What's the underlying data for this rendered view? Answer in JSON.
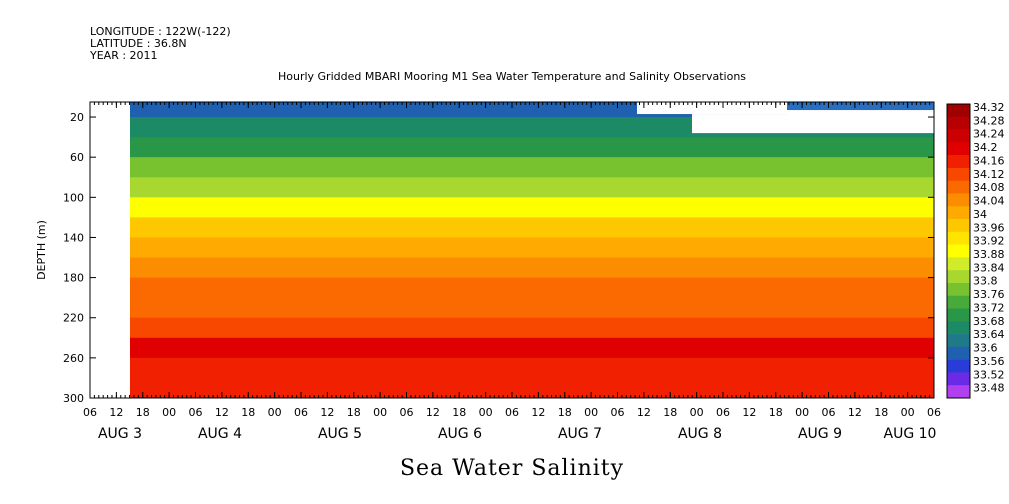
{
  "header": {
    "longitude": "LONGITUDE : 122W(-122)",
    "latitude": "LATITUDE : 36.8N",
    "year": "YEAR : 2011"
  },
  "chart_data": {
    "type": "heatmap",
    "title": "Hourly Gridded MBARI Mooring M1 Sea Water Temperature and Salinity Observations",
    "xlabel": "Sea Water Salinity",
    "ylabel": "DEPTH (m)",
    "y_ticks": [
      20,
      60,
      100,
      140,
      180,
      220,
      260,
      300
    ],
    "ylim": [
      300,
      5
    ],
    "x_hour_ticks": [
      "06",
      "12",
      "18",
      "00",
      "06",
      "12",
      "18",
      "00",
      "06",
      "12",
      "18",
      "00",
      "06",
      "12",
      "18",
      "00",
      "06",
      "12",
      "18",
      "00",
      "06",
      "12",
      "18",
      "00",
      "06",
      "12",
      "18",
      "00",
      "06",
      "12",
      "18",
      "00",
      "06"
    ],
    "x_day_labels": [
      "AUG  3",
      "AUG  4",
      "AUG  5",
      "AUG  6",
      "AUG  7",
      "AUG  8",
      "AUG  9",
      "AUG 10"
    ],
    "colorbar_levels": [
      "34.32",
      "34.28",
      "34.24",
      "34.2",
      "34.16",
      "34.12",
      "34.08",
      "34.04",
      "34",
      "33.96",
      "33.92",
      "33.88",
      "33.84",
      "33.8",
      "33.76",
      "33.72",
      "33.68",
      "33.64",
      "33.6",
      "33.56",
      "33.52",
      "33.48"
    ],
    "colorbar_colors": [
      "#a00000",
      "#b80000",
      "#cc0000",
      "#e00000",
      "#f02000",
      "#f84800",
      "#fa6a00",
      "#fc8c00",
      "#feaa00",
      "#fec800",
      "#ffe400",
      "#ffff00",
      "#d0ec28",
      "#a8d830",
      "#78c230",
      "#48aa38",
      "#2a9648",
      "#1c8a64",
      "#1e7a88",
      "#2060b0",
      "#2a3cd8",
      "#6a2ae6",
      "#b040f0"
    ],
    "depth_profile": [
      {
        "depth": 10,
        "salinity": 33.6
      },
      {
        "depth": 30,
        "salinity": 33.68
      },
      {
        "depth": 50,
        "salinity": 33.74
      },
      {
        "depth": 70,
        "salinity": 33.8
      },
      {
        "depth": 90,
        "salinity": 33.86
      },
      {
        "depth": 110,
        "salinity": 33.92
      },
      {
        "depth": 130,
        "salinity": 34.0
      },
      {
        "depth": 150,
        "salinity": 34.06
      },
      {
        "depth": 170,
        "salinity": 34.1
      },
      {
        "depth": 190,
        "salinity": 34.12
      },
      {
        "depth": 210,
        "salinity": 34.14
      },
      {
        "depth": 230,
        "salinity": 34.18
      },
      {
        "depth": 250,
        "salinity": 34.24
      },
      {
        "depth": 270,
        "salinity": 34.22
      },
      {
        "depth": 290,
        "salinity": 34.2
      }
    ]
  }
}
